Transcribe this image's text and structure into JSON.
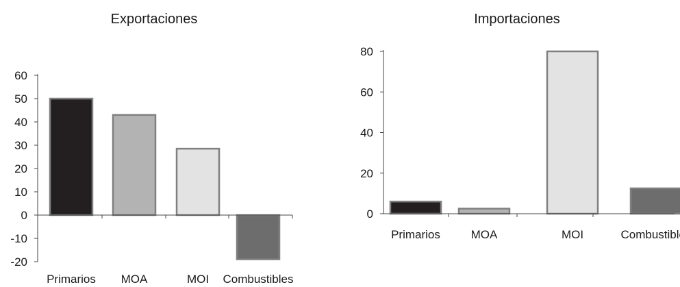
{
  "chart_data": [
    {
      "type": "bar",
      "title": "Exportaciones",
      "categories": [
        "Primarios",
        "MOA",
        "MOI",
        "Combustibles"
      ],
      "values": [
        50,
        43,
        28.5,
        -19
      ],
      "ylim": [
        -20,
        60
      ],
      "yticks": [
        60,
        50,
        40,
        30,
        20,
        10,
        0,
        -10,
        -20
      ],
      "xlabel": "",
      "ylabel": "",
      "grid": false,
      "legend": "none",
      "colors": [
        "#231f20",
        "#b3b3b3",
        "#e3e3e3",
        "#6d6d6d"
      ],
      "edge_color": "#808080"
    },
    {
      "type": "bar",
      "title": "Importaciones",
      "categories": [
        "Primarios",
        "MOA",
        "MOI",
        "Combustibles"
      ],
      "values": [
        6,
        2.5,
        80,
        12.5
      ],
      "ylim": [
        0,
        80
      ],
      "yticks": [
        80,
        60,
        40,
        20,
        0
      ],
      "xlabel": "",
      "ylabel": "",
      "grid": false,
      "legend": "none",
      "colors": [
        "#231f20",
        "#b3b3b3",
        "#e3e3e3",
        "#6d6d6d"
      ],
      "edge_color": "#808080"
    }
  ]
}
